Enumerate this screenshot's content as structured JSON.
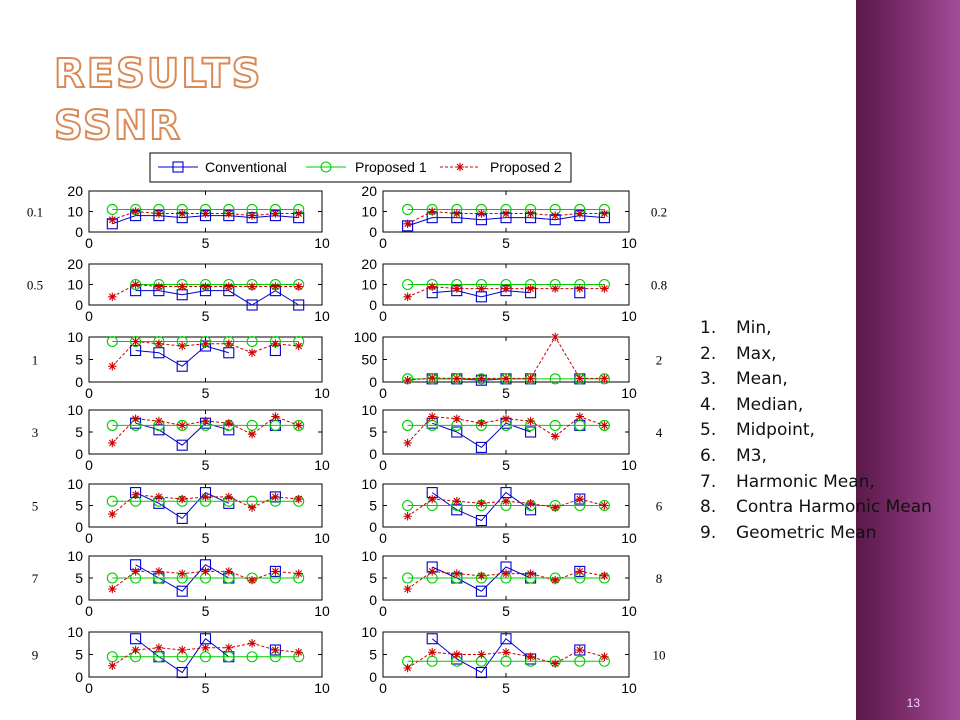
{
  "slide": {
    "title_line1": "RESULTS",
    "title_line2": "SSNR",
    "page_number": "13",
    "accent_color": "#d98a56",
    "sidebar_color": "#7a2c6a"
  },
  "methods": [
    {
      "num": "1.",
      "label": "Min,"
    },
    {
      "num": "2.",
      "label": "Max,"
    },
    {
      "num": "3.",
      "label": "Mean,"
    },
    {
      "num": "4.",
      "label": "Median,"
    },
    {
      "num": "5.",
      "label": "Midpoint,"
    },
    {
      "num": "6.",
      "label": "M3,"
    },
    {
      "num": "7.",
      "label": "Harmonic Mean,"
    },
    {
      "num": "8.",
      "label": "Contra Harmonic Mean"
    },
    {
      "num": "9.",
      "label": "Geometric Mean"
    }
  ],
  "legend": {
    "series": [
      {
        "name": "Conventional",
        "color": "#0000cc",
        "marker": "square",
        "line": "solid"
      },
      {
        "name": "Proposed 1",
        "color": "#00cc00",
        "marker": "circle",
        "line": "solid"
      },
      {
        "name": "Proposed 2",
        "color": "#cc0000",
        "marker": "star",
        "line": "dashed"
      }
    ]
  },
  "chart_data": [
    {
      "type": "line",
      "label": "0.1",
      "ylim": [
        0,
        20
      ],
      "yticks": [
        0,
        10,
        20
      ],
      "xlim": [
        0,
        10
      ],
      "xticks": [
        0,
        5,
        10
      ],
      "x": [
        1,
        2,
        3,
        4,
        5,
        6,
        7,
        8,
        9
      ],
      "series": [
        {
          "name": "Conventional",
          "values": [
            4,
            8,
            8,
            7,
            8,
            8,
            7,
            8,
            7
          ]
        },
        {
          "name": "Proposed 1",
          "values": [
            11,
            11,
            11,
            11,
            11,
            11,
            11,
            11,
            11
          ]
        },
        {
          "name": "Proposed 2",
          "values": [
            6,
            10,
            9,
            9,
            9,
            9,
            8,
            9,
            9
          ]
        }
      ]
    },
    {
      "type": "line",
      "label": "0.2",
      "ylim": [
        0,
        20
      ],
      "yticks": [
        0,
        10,
        20
      ],
      "xlim": [
        0,
        10
      ],
      "xticks": [
        0,
        5,
        10
      ],
      "x": [
        1,
        2,
        3,
        4,
        5,
        6,
        7,
        8,
        9
      ],
      "series": [
        {
          "name": "Conventional",
          "values": [
            3,
            7,
            7,
            6,
            7,
            7,
            6,
            8,
            7
          ]
        },
        {
          "name": "Proposed 1",
          "values": [
            11,
            11,
            11,
            11,
            11,
            11,
            11,
            11,
            11
          ]
        },
        {
          "name": "Proposed 2",
          "values": [
            4,
            10,
            9,
            9,
            9,
            9,
            8,
            9,
            9
          ]
        }
      ]
    },
    {
      "type": "line",
      "label": "0.5",
      "ylim": [
        0,
        20
      ],
      "yticks": [
        0,
        10,
        20
      ],
      "xlim": [
        0,
        10
      ],
      "xticks": [
        0,
        5,
        10
      ],
      "x": [
        1,
        2,
        3,
        4,
        5,
        6,
        7,
        8,
        9
      ],
      "series": [
        {
          "name": "Conventional",
          "values": [
            null,
            7,
            7,
            5,
            7,
            7,
            0,
            7,
            0
          ]
        },
        {
          "name": "Proposed 1",
          "values": [
            null,
            10,
            10,
            10,
            10,
            10,
            10,
            10,
            10
          ]
        },
        {
          "name": "Proposed 2",
          "values": [
            4,
            10,
            9,
            9,
            9,
            9,
            9,
            9,
            9
          ]
        }
      ]
    },
    {
      "type": "line",
      "label": "0.8",
      "ylim": [
        0,
        20
      ],
      "yticks": [
        0,
        10,
        20
      ],
      "xlim": [
        0,
        10
      ],
      "xticks": [
        0,
        5,
        10
      ],
      "x": [
        1,
        2,
        3,
        4,
        5,
        6,
        7,
        8,
        9
      ],
      "series": [
        {
          "name": "Conventional",
          "values": [
            null,
            6,
            7,
            4,
            7,
            6,
            null,
            6,
            null
          ]
        },
        {
          "name": "Proposed 1",
          "values": [
            10,
            10,
            10,
            10,
            10,
            10,
            10,
            10,
            10
          ]
        },
        {
          "name": "Proposed 2",
          "values": [
            4,
            9,
            8,
            8,
            8,
            8,
            8,
            8,
            8
          ]
        }
      ]
    },
    {
      "type": "line",
      "label": "1",
      "ylim": [
        0,
        10
      ],
      "yticks": [
        0,
        5,
        10
      ],
      "xlim": [
        0,
        10
      ],
      "xticks": [
        0,
        5,
        10
      ],
      "x": [
        1,
        2,
        3,
        4,
        5,
        6,
        7,
        8,
        9
      ],
      "series": [
        {
          "name": "Conventional",
          "values": [
            null,
            7,
            6.5,
            3.5,
            8,
            6.5,
            null,
            7,
            null
          ]
        },
        {
          "name": "Proposed 1",
          "values": [
            9,
            9,
            9,
            9,
            9,
            9,
            9,
            9,
            9
          ]
        },
        {
          "name": "Proposed 2",
          "values": [
            3.5,
            9,
            8.5,
            8,
            8.5,
            8.5,
            6.5,
            8.5,
            8
          ]
        }
      ]
    },
    {
      "type": "line",
      "label": "2",
      "ylim": [
        0,
        100
      ],
      "yticks": [
        0,
        50,
        100
      ],
      "xlim": [
        0,
        10
      ],
      "xticks": [
        0,
        5,
        10
      ],
      "x": [
        1,
        2,
        3,
        4,
        5,
        6,
        7,
        8,
        9
      ],
      "series": [
        {
          "name": "Conventional",
          "values": [
            null,
            7,
            7,
            4,
            7,
            7,
            null,
            7,
            null
          ]
        },
        {
          "name": "Proposed 1",
          "values": [
            7,
            7,
            7,
            7,
            7,
            7,
            7,
            7,
            7
          ]
        },
        {
          "name": "Proposed 2",
          "values": [
            4,
            9,
            8,
            8,
            8,
            8,
            100,
            8,
            8
          ]
        }
      ]
    },
    {
      "type": "line",
      "label": "3",
      "ylim": [
        0,
        10
      ],
      "yticks": [
        0,
        5,
        10
      ],
      "xlim": [
        0,
        10
      ],
      "xticks": [
        0,
        5,
        10
      ],
      "x": [
        1,
        2,
        3,
        4,
        5,
        6,
        7,
        8,
        9
      ],
      "series": [
        {
          "name": "Conventional",
          "values": [
            null,
            7,
            5.5,
            2,
            7,
            5.5,
            null,
            6.5,
            null
          ]
        },
        {
          "name": "Proposed 1",
          "values": [
            6.5,
            6.5,
            6.5,
            6.5,
            6.5,
            6.5,
            6.5,
            6.5,
            6.5
          ]
        },
        {
          "name": "Proposed 2",
          "values": [
            2.5,
            8,
            7.5,
            6.5,
            7.5,
            7,
            4.5,
            8.5,
            6.5
          ]
        }
      ]
    },
    {
      "type": "line",
      "label": "4",
      "ylim": [
        0,
        10
      ],
      "yticks": [
        0,
        5,
        10
      ],
      "xlim": [
        0,
        10
      ],
      "xticks": [
        0,
        5,
        10
      ],
      "x": [
        1,
        2,
        3,
        4,
        5,
        6,
        7,
        8,
        9
      ],
      "series": [
        {
          "name": "Conventional",
          "values": [
            null,
            7,
            5,
            1.5,
            7,
            5,
            null,
            6.5,
            null
          ]
        },
        {
          "name": "Proposed 1",
          "values": [
            6.5,
            6.5,
            6.5,
            6.5,
            6.5,
            6.5,
            6.5,
            6.5,
            6.5
          ]
        },
        {
          "name": "Proposed 2",
          "values": [
            2.5,
            8.5,
            8,
            7,
            8,
            7.5,
            4,
            8.5,
            6.5
          ]
        }
      ]
    },
    {
      "type": "line",
      "label": "5",
      "ylim": [
        0,
        10
      ],
      "yticks": [
        0,
        5,
        10
      ],
      "xlim": [
        0,
        10
      ],
      "xticks": [
        0,
        5,
        10
      ],
      "x": [
        1,
        2,
        3,
        4,
        5,
        6,
        7,
        8,
        9
      ],
      "series": [
        {
          "name": "Conventional",
          "values": [
            null,
            8,
            5.5,
            2,
            8,
            5.5,
            null,
            7,
            null
          ]
        },
        {
          "name": "Proposed 1",
          "values": [
            6,
            6,
            6,
            6,
            6,
            6,
            6,
            6,
            6
          ]
        },
        {
          "name": "Proposed 2",
          "values": [
            3,
            7.5,
            7,
            6.5,
            7,
            7,
            4.5,
            7,
            6.5
          ]
        }
      ]
    },
    {
      "type": "line",
      "label": "6",
      "ylim": [
        0,
        10
      ],
      "yticks": [
        0,
        5,
        10
      ],
      "xlim": [
        0,
        10
      ],
      "xticks": [
        0,
        5,
        10
      ],
      "x": [
        1,
        2,
        3,
        4,
        5,
        6,
        7,
        8,
        9
      ],
      "series": [
        {
          "name": "Conventional",
          "values": [
            null,
            8,
            4,
            1.5,
            8,
            4,
            null,
            6.5,
            null
          ]
        },
        {
          "name": "Proposed 1",
          "values": [
            5,
            5,
            5,
            5,
            5,
            5,
            5,
            5,
            5
          ]
        },
        {
          "name": "Proposed 2",
          "values": [
            2.5,
            6.5,
            6,
            5.5,
            6,
            5.5,
            4.5,
            6.5,
            5
          ]
        }
      ]
    },
    {
      "type": "line",
      "label": "7",
      "ylim": [
        0,
        10
      ],
      "yticks": [
        0,
        5,
        10
      ],
      "xlim": [
        0,
        10
      ],
      "xticks": [
        0,
        5,
        10
      ],
      "x": [
        1,
        2,
        3,
        4,
        5,
        6,
        7,
        8,
        9
      ],
      "series": [
        {
          "name": "Conventional",
          "values": [
            null,
            8,
            5,
            2,
            8,
            5,
            null,
            6.5,
            null
          ]
        },
        {
          "name": "Proposed 1",
          "values": [
            5,
            5,
            5,
            5,
            5,
            5,
            5,
            5,
            5
          ]
        },
        {
          "name": "Proposed 2",
          "values": [
            2.5,
            6.5,
            6.5,
            6,
            6.5,
            6.5,
            4.5,
            6.5,
            6
          ]
        }
      ]
    },
    {
      "type": "line",
      "label": "8",
      "ylim": [
        0,
        10
      ],
      "yticks": [
        0,
        5,
        10
      ],
      "xlim": [
        0,
        10
      ],
      "xticks": [
        0,
        5,
        10
      ],
      "x": [
        1,
        2,
        3,
        4,
        5,
        6,
        7,
        8,
        9
      ],
      "series": [
        {
          "name": "Conventional",
          "values": [
            null,
            7.5,
            5,
            2,
            7.5,
            5,
            null,
            6.5,
            null
          ]
        },
        {
          "name": "Proposed 1",
          "values": [
            5,
            5,
            5,
            5,
            5,
            5,
            5,
            5,
            5
          ]
        },
        {
          "name": "Proposed 2",
          "values": [
            2.5,
            6.5,
            6,
            5.5,
            6,
            6,
            4.5,
            6.5,
            5.5
          ]
        }
      ]
    },
    {
      "type": "line",
      "label": "9",
      "ylim": [
        0,
        10
      ],
      "yticks": [
        0,
        5,
        10
      ],
      "xlim": [
        0,
        10
      ],
      "xticks": [
        0,
        5,
        10
      ],
      "x": [
        1,
        2,
        3,
        4,
        5,
        6,
        7,
        8,
        9
      ],
      "series": [
        {
          "name": "Conventional",
          "values": [
            null,
            8.5,
            4.5,
            1,
            8.5,
            4.5,
            null,
            6,
            null
          ]
        },
        {
          "name": "Proposed 1",
          "values": [
            4.5,
            4.5,
            4.5,
            4.5,
            4.5,
            4.5,
            4.5,
            4.5,
            4.5
          ]
        },
        {
          "name": "Proposed 2",
          "values": [
            2.5,
            6,
            6.5,
            6,
            6.5,
            6.5,
            7.5,
            6,
            5.5
          ]
        }
      ]
    },
    {
      "type": "line",
      "label": "10",
      "ylim": [
        0,
        10
      ],
      "yticks": [
        0,
        5,
        10
      ],
      "xlim": [
        0,
        10
      ],
      "xticks": [
        0,
        5,
        10
      ],
      "x": [
        1,
        2,
        3,
        4,
        5,
        6,
        7,
        8,
        9
      ],
      "series": [
        {
          "name": "Conventional",
          "values": [
            null,
            8.5,
            4,
            1,
            8.5,
            4,
            null,
            6,
            null
          ]
        },
        {
          "name": "Proposed 1",
          "values": [
            3.5,
            3.5,
            3.5,
            3.5,
            3.5,
            3.5,
            3.5,
            3.5,
            3.5
          ]
        },
        {
          "name": "Proposed 2",
          "values": [
            2,
            5.5,
            5,
            5,
            5.5,
            4.5,
            3,
            6,
            4.5
          ]
        }
      ]
    }
  ]
}
